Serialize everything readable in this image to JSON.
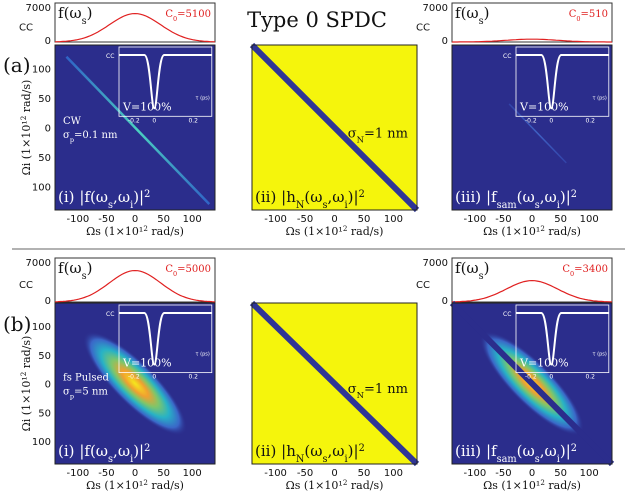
{
  "title": "Type 0 SPDC",
  "row_labels": [
    "(a)",
    "(b)"
  ],
  "colors": {
    "background_map": "#2b2d8c",
    "yellow": "#f5f50c",
    "diag_blue": "#2f3596",
    "spectrum_red": "#e02020",
    "cc_white": "#ffffff"
  },
  "chart_data": [
    {
      "type": "heatmap",
      "panel": "(i)",
      "row": "(a)",
      "label_prefix": "(i)",
      "label_formula": "|f(ωs,ωi)|²",
      "annotation_lines": [
        "CW",
        "σp=0.1 nm"
      ],
      "xlabel": "Ωs (1×10¹² rad/s)",
      "ylabel": "Ωi (1×10¹² rad/s)",
      "xticks": [
        "-100",
        "-50",
        "0",
        "50",
        "100"
      ],
      "yticks": [
        "100",
        "50",
        "0",
        "50",
        "100"
      ],
      "xlim": [
        -140,
        140
      ],
      "ylim": [
        -140,
        140
      ],
      "shape": "narrow anti-diagonal line",
      "marginal": {
        "label": "f(ωs)",
        "ylabel": "CC",
        "yticks": [
          "7000",
          "0"
        ],
        "ylim": [
          0,
          7000
        ],
        "c0_label": "C0=5100",
        "c0": 5100,
        "peak_x": 0
      },
      "inset": {
        "ylabel": "CC",
        "xlabel": "τ (ps)",
        "xticks": [
          "-0.2",
          "0",
          "0.2"
        ],
        "visibility": "V=100%"
      }
    },
    {
      "type": "heatmap",
      "panel": "(ii)",
      "row": "(a)",
      "label_prefix": "(ii)",
      "label_formula": "|hN(ωs,ωi)|²",
      "annotation_lines": [
        "σN=1 nm"
      ],
      "xlabel": "Ωs (1×10¹² rad/s)",
      "xticks": [
        "-100",
        "-50",
        "0",
        "50",
        "100"
      ],
      "xlim": [
        -140,
        140
      ],
      "ylim": [
        -140,
        140
      ],
      "shape": "yellow field with blue diagonal line"
    },
    {
      "type": "heatmap",
      "panel": "(iii)",
      "row": "(a)",
      "label_prefix": "(iii)",
      "label_formula": "|fsam(ωs,ωi)|²",
      "xlabel": "Ωs (1×10¹² rad/s)",
      "xticks": [
        "-100",
        "-50",
        "0",
        "50",
        "100"
      ],
      "xlim": [
        -140,
        140
      ],
      "ylim": [
        -140,
        140
      ],
      "shape": "faint anti-diagonal line",
      "marginal": {
        "label": "f(ωs)",
        "ylabel": "CC",
        "yticks": [
          "7000",
          "0"
        ],
        "ylim": [
          0,
          7000
        ],
        "c0_label": "C0=510",
        "c0": 510,
        "peak_x": 0
      },
      "inset": {
        "ylabel": "CC",
        "xlabel": "τ (ps)",
        "xticks": [
          "-0.2",
          "0",
          "0.2"
        ],
        "visibility": "V=100%"
      }
    },
    {
      "type": "heatmap",
      "panel": "(i)",
      "row": "(b)",
      "label_prefix": "(i)",
      "label_formula": "|f(ωs,ωi)|²",
      "annotation_lines": [
        "fs Pulsed",
        "σp=5 nm"
      ],
      "xlabel": "Ωs (1×10¹² rad/s)",
      "ylabel": "Ωi (1×10¹² rad/s)",
      "xticks": [
        "-100",
        "-50",
        "0",
        "50",
        "100"
      ],
      "yticks": [
        "100",
        "50",
        "0",
        "50",
        "100"
      ],
      "xlim": [
        -140,
        140
      ],
      "ylim": [
        -140,
        140
      ],
      "shape": "broad anti-diagonal ellipse",
      "marginal": {
        "label": "f(ωs)",
        "ylabel": "CC",
        "yticks": [
          "7000",
          "0"
        ],
        "ylim": [
          0,
          7000
        ],
        "c0_label": "C0=5000",
        "c0": 5000,
        "peak_x": 0
      },
      "inset": {
        "ylabel": "CC",
        "xlabel": "τ (ps)",
        "xticks": [
          "-0.2",
          "0",
          "0.2"
        ],
        "visibility": "V=100%"
      }
    },
    {
      "type": "heatmap",
      "panel": "(ii)",
      "row": "(b)",
      "label_prefix": "(ii)",
      "label_formula": "|hN(ωs,ωi)|²",
      "annotation_lines": [
        "σN=1 nm"
      ],
      "xlabel": "Ωs (1×10¹² rad/s)",
      "xticks": [
        "-100",
        "-50",
        "0",
        "50",
        "100"
      ],
      "xlim": [
        -140,
        140
      ],
      "ylim": [
        -140,
        140
      ],
      "shape": "yellow field with blue diagonal line"
    },
    {
      "type": "heatmap",
      "panel": "(iii)",
      "row": "(b)",
      "label_prefix": "(iii)",
      "label_formula": "|fsam(ωs,ωi)|²",
      "xlabel": "Ωs (1×10¹² rad/s)",
      "xticks": [
        "-100",
        "-50",
        "0",
        "50",
        "100"
      ],
      "xlim": [
        -140,
        140
      ],
      "ylim": [
        -140,
        140
      ],
      "shape": "broad ellipse with dark diagonal notch",
      "marginal": {
        "label": "f(ωs)",
        "ylabel": "CC",
        "yticks": [
          "7000",
          "0"
        ],
        "ylim": [
          0,
          7000
        ],
        "c0_label": "C0=3400",
        "c0": 3400,
        "peak_x": 0
      },
      "inset": {
        "ylabel": "CC",
        "xlabel": "τ (ps)",
        "xticks": [
          "-0.2",
          "0",
          "0.2"
        ],
        "visibility": "V=100%"
      }
    }
  ]
}
